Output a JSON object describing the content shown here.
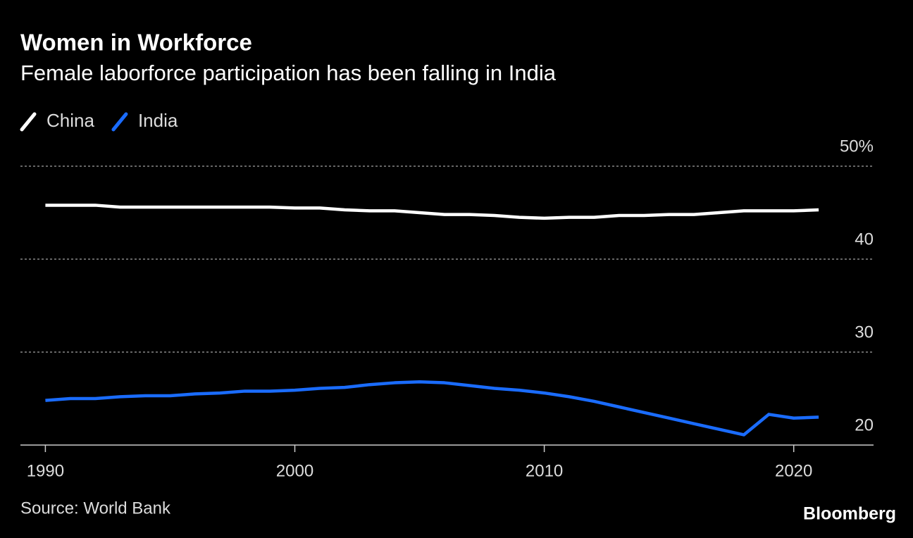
{
  "chart_data": {
    "type": "line",
    "title": "Women in Workforce",
    "subtitle": "Female laborforce participation has been falling in India",
    "source": "Source: World Bank",
    "brand": "Bloomberg",
    "x": [
      1990,
      1991,
      1992,
      1993,
      1994,
      1995,
      1996,
      1997,
      1998,
      1999,
      2000,
      2001,
      2002,
      2003,
      2004,
      2005,
      2006,
      2007,
      2008,
      2009,
      2010,
      2011,
      2012,
      2013,
      2014,
      2015,
      2016,
      2017,
      2018,
      2019,
      2020,
      2021
    ],
    "series": [
      {
        "name": "China",
        "color": "#ffffff",
        "values": [
          45.8,
          45.8,
          45.8,
          45.6,
          45.6,
          45.6,
          45.6,
          45.6,
          45.6,
          45.6,
          45.5,
          45.5,
          45.3,
          45.2,
          45.2,
          45.0,
          44.8,
          44.8,
          44.7,
          44.5,
          44.4,
          44.5,
          44.5,
          44.7,
          44.7,
          44.8,
          44.8,
          45.0,
          45.2,
          45.2,
          45.2,
          45.3
        ]
      },
      {
        "name": "India",
        "color": "#1a6cff",
        "values": [
          24.8,
          25.0,
          25.0,
          25.2,
          25.3,
          25.3,
          25.5,
          25.6,
          25.8,
          25.8,
          25.9,
          26.1,
          26.2,
          26.5,
          26.7,
          26.8,
          26.7,
          26.4,
          26.1,
          25.9,
          25.6,
          25.2,
          24.7,
          24.1,
          23.5,
          22.9,
          22.3,
          21.7,
          21.1,
          23.3,
          22.9,
          23.0
        ]
      }
    ],
    "xlim": [
      1989,
      2023.2
    ],
    "xticks": [
      1990,
      2000,
      2010,
      2020
    ],
    "ylim": [
      20,
      50
    ],
    "yticks": [
      20,
      30,
      40,
      {
        "value": 50,
        "label": "50%"
      }
    ],
    "grid": true
  }
}
